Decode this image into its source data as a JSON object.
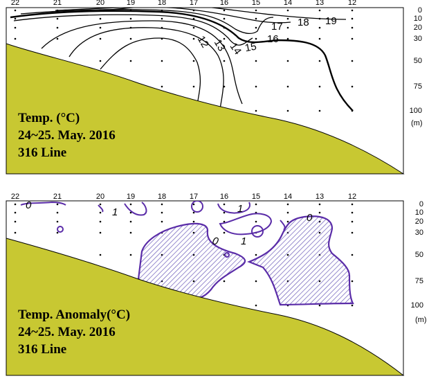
{
  "stations": [
    "22",
    "21",
    "20",
    "19",
    "18",
    "17",
    "16",
    "15",
    "14",
    "13",
    "12"
  ],
  "depths": [
    "0",
    "10",
    "20",
    "30",
    "50",
    "75",
    "100"
  ],
  "depth_unit": "(m)",
  "colors": {
    "seabed": "#c8c832",
    "anomaly_line": "#5a2ca8",
    "hatch": "#6a5ab8",
    "contour": "#000000"
  },
  "temperature": {
    "caption": [
      "Temp. (°C)",
      "24~25. May. 2016",
      "316 Line"
    ],
    "contour_labels": [
      "12",
      "13",
      "14",
      "15",
      "16",
      "17",
      "18",
      "19"
    ]
  },
  "anomaly": {
    "caption": [
      "Temp. Anomaly(°C)",
      "24~25. May. 2016",
      "316 Line"
    ],
    "contour_labels": [
      "0",
      "1",
      "1",
      "0",
      "0",
      "1"
    ]
  }
}
